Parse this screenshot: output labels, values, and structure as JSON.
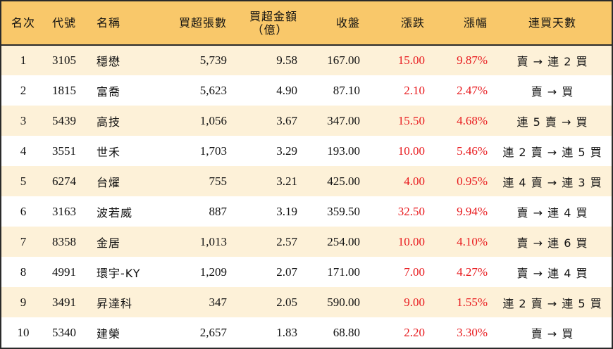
{
  "headers": {
    "rank": "名次",
    "code": "代號",
    "name": "名稱",
    "net_shares": "買超張數",
    "net_amount_line1": "買超金額",
    "net_amount_line2": "（億）",
    "close": "收盤",
    "change": "漲跌",
    "change_pct": "漲幅",
    "streak": "連買天數"
  },
  "colors": {
    "header_bg": "#f9c86a",
    "stripe_bg": "#fdf1d8",
    "up": "#e8191d"
  },
  "rows": [
    {
      "rank": "1",
      "code": "3105",
      "name": "穩懋",
      "net_shares": "5,739",
      "net_amount": "9.58",
      "close": "167.00",
      "change": "15.00",
      "change_pct": "9.87%",
      "streak": "賣 → 連 2 買"
    },
    {
      "rank": "2",
      "code": "1815",
      "name": "富喬",
      "net_shares": "5,623",
      "net_amount": "4.90",
      "close": "87.10",
      "change": "2.10",
      "change_pct": "2.47%",
      "streak": "賣 → 買"
    },
    {
      "rank": "3",
      "code": "5439",
      "name": "高技",
      "net_shares": "1,056",
      "net_amount": "3.67",
      "close": "347.00",
      "change": "15.50",
      "change_pct": "4.68%",
      "streak": "連 5 賣 → 買"
    },
    {
      "rank": "4",
      "code": "3551",
      "name": "世禾",
      "net_shares": "1,703",
      "net_amount": "3.29",
      "close": "193.00",
      "change": "10.00",
      "change_pct": "5.46%",
      "streak": "連 2 賣 → 連 5 買"
    },
    {
      "rank": "5",
      "code": "6274",
      "name": "台燿",
      "net_shares": "755",
      "net_amount": "3.21",
      "close": "425.00",
      "change": "4.00",
      "change_pct": "0.95%",
      "streak": "連 4 賣 → 連 3 買"
    },
    {
      "rank": "6",
      "code": "3163",
      "name": "波若威",
      "net_shares": "887",
      "net_amount": "3.19",
      "close": "359.50",
      "change": "32.50",
      "change_pct": "9.94%",
      "streak": "賣 → 連 4 買"
    },
    {
      "rank": "7",
      "code": "8358",
      "name": "金居",
      "net_shares": "1,013",
      "net_amount": "2.57",
      "close": "254.00",
      "change": "10.00",
      "change_pct": "4.10%",
      "streak": "賣 → 連 6 買"
    },
    {
      "rank": "8",
      "code": "4991",
      "name": "環宇-KY",
      "net_shares": "1,209",
      "net_amount": "2.07",
      "close": "171.00",
      "change": "7.00",
      "change_pct": "4.27%",
      "streak": "賣 → 連 4 買"
    },
    {
      "rank": "9",
      "code": "3491",
      "name": "昇達科",
      "net_shares": "347",
      "net_amount": "2.05",
      "close": "590.00",
      "change": "9.00",
      "change_pct": "1.55%",
      "streak": "連 2 賣 → 連 5 買"
    },
    {
      "rank": "10",
      "code": "5340",
      "name": "建榮",
      "net_shares": "2,657",
      "net_amount": "1.83",
      "close": "68.80",
      "change": "2.20",
      "change_pct": "3.30%",
      "streak": "賣 → 買"
    }
  ]
}
